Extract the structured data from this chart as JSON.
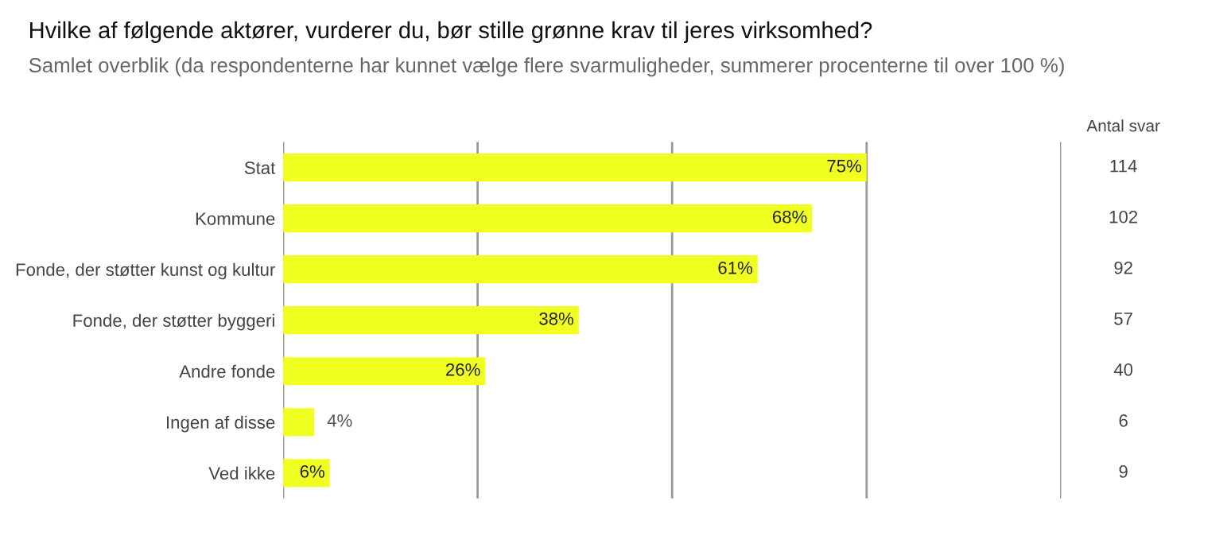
{
  "chart_data": {
    "type": "bar",
    "orientation": "horizontal",
    "title": "Hvilke af følgende aktører, vurderer du, bør stille grønne krav til jeres virksomhed?",
    "subtitle": "Samlet overblik (da respondenterne har kunnet vælge flere svarmuligheder, summerer procenterne til over 100 %)",
    "categories": [
      "Stat",
      "Kommune",
      "Fonde, der støtter kunst og kultur",
      "Fonde, der støtter byggeri",
      "Andre fonde",
      "Ingen af disse",
      "Ved ikke"
    ],
    "values": [
      75,
      68,
      61,
      38,
      26,
      4,
      6
    ],
    "value_labels": [
      "75%",
      "68%",
      "61%",
      "38%",
      "26%",
      "4%",
      "6%"
    ],
    "color": "#f0ff1f",
    "xlim": [
      0,
      100
    ],
    "xticks": [
      {
        "value": 0,
        "label": null
      },
      {
        "value": 25,
        "label": null
      },
      {
        "value": 50,
        "label": null
      },
      {
        "value": 75,
        "label": null
      },
      {
        "value": 100,
        "label": null
      }
    ],
    "grid": "x",
    "tick_labels": "y",
    "legend": false,
    "annotations": [
      "Antal svar",
      "114",
      "102",
      "92",
      "57",
      "40",
      "6",
      "9"
    ]
  }
}
